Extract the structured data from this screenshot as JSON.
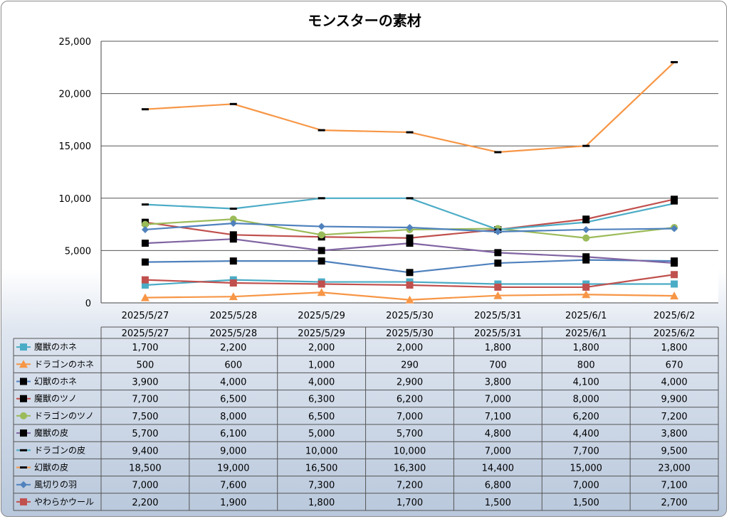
{
  "chart_data": {
    "type": "line",
    "title": "モンスターの素材",
    "categories": [
      "2025/5/27",
      "2025/5/28",
      "2025/5/29",
      "2025/5/30",
      "2025/5/31",
      "2025/6/1",
      "2025/6/2"
    ],
    "y_ticks": [
      "0",
      "5,000",
      "10,000",
      "15,000",
      "20,000",
      "25,000"
    ],
    "ylim": [
      0,
      25000
    ],
    "grid": true,
    "legend_placement": "data-table",
    "series": [
      {
        "name": "魔獣のホネ",
        "values": [
          1700,
          2200,
          2000,
          2000,
          1800,
          1800,
          1800
        ],
        "labels": [
          "1,700",
          "2,200",
          "2,000",
          "2,000",
          "1,800",
          "1,800",
          "1,800"
        ],
        "color": "#4bacc6",
        "marker": "square",
        "marker_color": "#4bacc6"
      },
      {
        "name": "ドラゴンのホネ",
        "values": [
          500,
          600,
          1000,
          290,
          700,
          800,
          670
        ],
        "labels": [
          "500",
          "600",
          "1,000",
          "290",
          "700",
          "800",
          "670"
        ],
        "color": "#f79646",
        "marker": "triangle",
        "marker_color": "#f79646"
      },
      {
        "name": "幻獣のホネ",
        "values": [
          3900,
          4000,
          4000,
          2900,
          3800,
          4100,
          4000
        ],
        "labels": [
          "3,900",
          "4,000",
          "4,000",
          "2,900",
          "3,800",
          "4,100",
          "4,000"
        ],
        "color": "#4f81bd",
        "marker": "square",
        "marker_color": "#000000"
      },
      {
        "name": "魔獣のツノ",
        "values": [
          7700,
          6500,
          6300,
          6200,
          7000,
          8000,
          9900
        ],
        "labels": [
          "7,700",
          "6,500",
          "6,300",
          "6,200",
          "7,000",
          "8,000",
          "9,900"
        ],
        "color": "#c0504d",
        "marker": "square",
        "marker_color": "#000000"
      },
      {
        "name": "ドラゴンのツノ",
        "values": [
          7500,
          8000,
          6500,
          7000,
          7100,
          6200,
          7200
        ],
        "labels": [
          "7,500",
          "8,000",
          "6,500",
          "7,000",
          "7,100",
          "6,200",
          "7,200"
        ],
        "color": "#9bbb59",
        "marker": "circle",
        "marker_color": "#9bbb59"
      },
      {
        "name": "魔獣の皮",
        "values": [
          5700,
          6100,
          5000,
          5700,
          4800,
          4400,
          3800
        ],
        "labels": [
          "5,700",
          "6,100",
          "5,000",
          "5,700",
          "4,800",
          "4,400",
          "3,800"
        ],
        "color": "#8064a2",
        "marker": "square",
        "marker_color": "#000000"
      },
      {
        "name": "ドラゴンの皮",
        "values": [
          9400,
          9000,
          10000,
          10000,
          7000,
          7700,
          9500
        ],
        "labels": [
          "9,400",
          "9,000",
          "10,000",
          "10,000",
          "7,000",
          "7,700",
          "9,500"
        ],
        "color": "#4bacc6",
        "marker": "dash",
        "marker_color": "#000000"
      },
      {
        "name": "幻獣の皮",
        "values": [
          18500,
          19000,
          16500,
          16300,
          14400,
          15000,
          23000
        ],
        "labels": [
          "18,500",
          "19,000",
          "16,500",
          "16,300",
          "14,400",
          "15,000",
          "23,000"
        ],
        "color": "#f79646",
        "marker": "dash",
        "marker_color": "#000000"
      },
      {
        "name": "風切りの羽",
        "values": [
          7000,
          7600,
          7300,
          7200,
          6800,
          7000,
          7100
        ],
        "labels": [
          "7,000",
          "7,600",
          "7,300",
          "7,200",
          "6,800",
          "7,000",
          "7,100"
        ],
        "color": "#4f81bd",
        "marker": "diamond",
        "marker_color": "#4f81bd"
      },
      {
        "name": "やわらかウール",
        "values": [
          2200,
          1900,
          1800,
          1700,
          1500,
          1500,
          2700
        ],
        "labels": [
          "2,200",
          "1,900",
          "1,800",
          "1,700",
          "1,500",
          "1,500",
          "2,700"
        ],
        "color": "#c0504d",
        "marker": "square",
        "marker_color": "#c0504d"
      }
    ]
  }
}
